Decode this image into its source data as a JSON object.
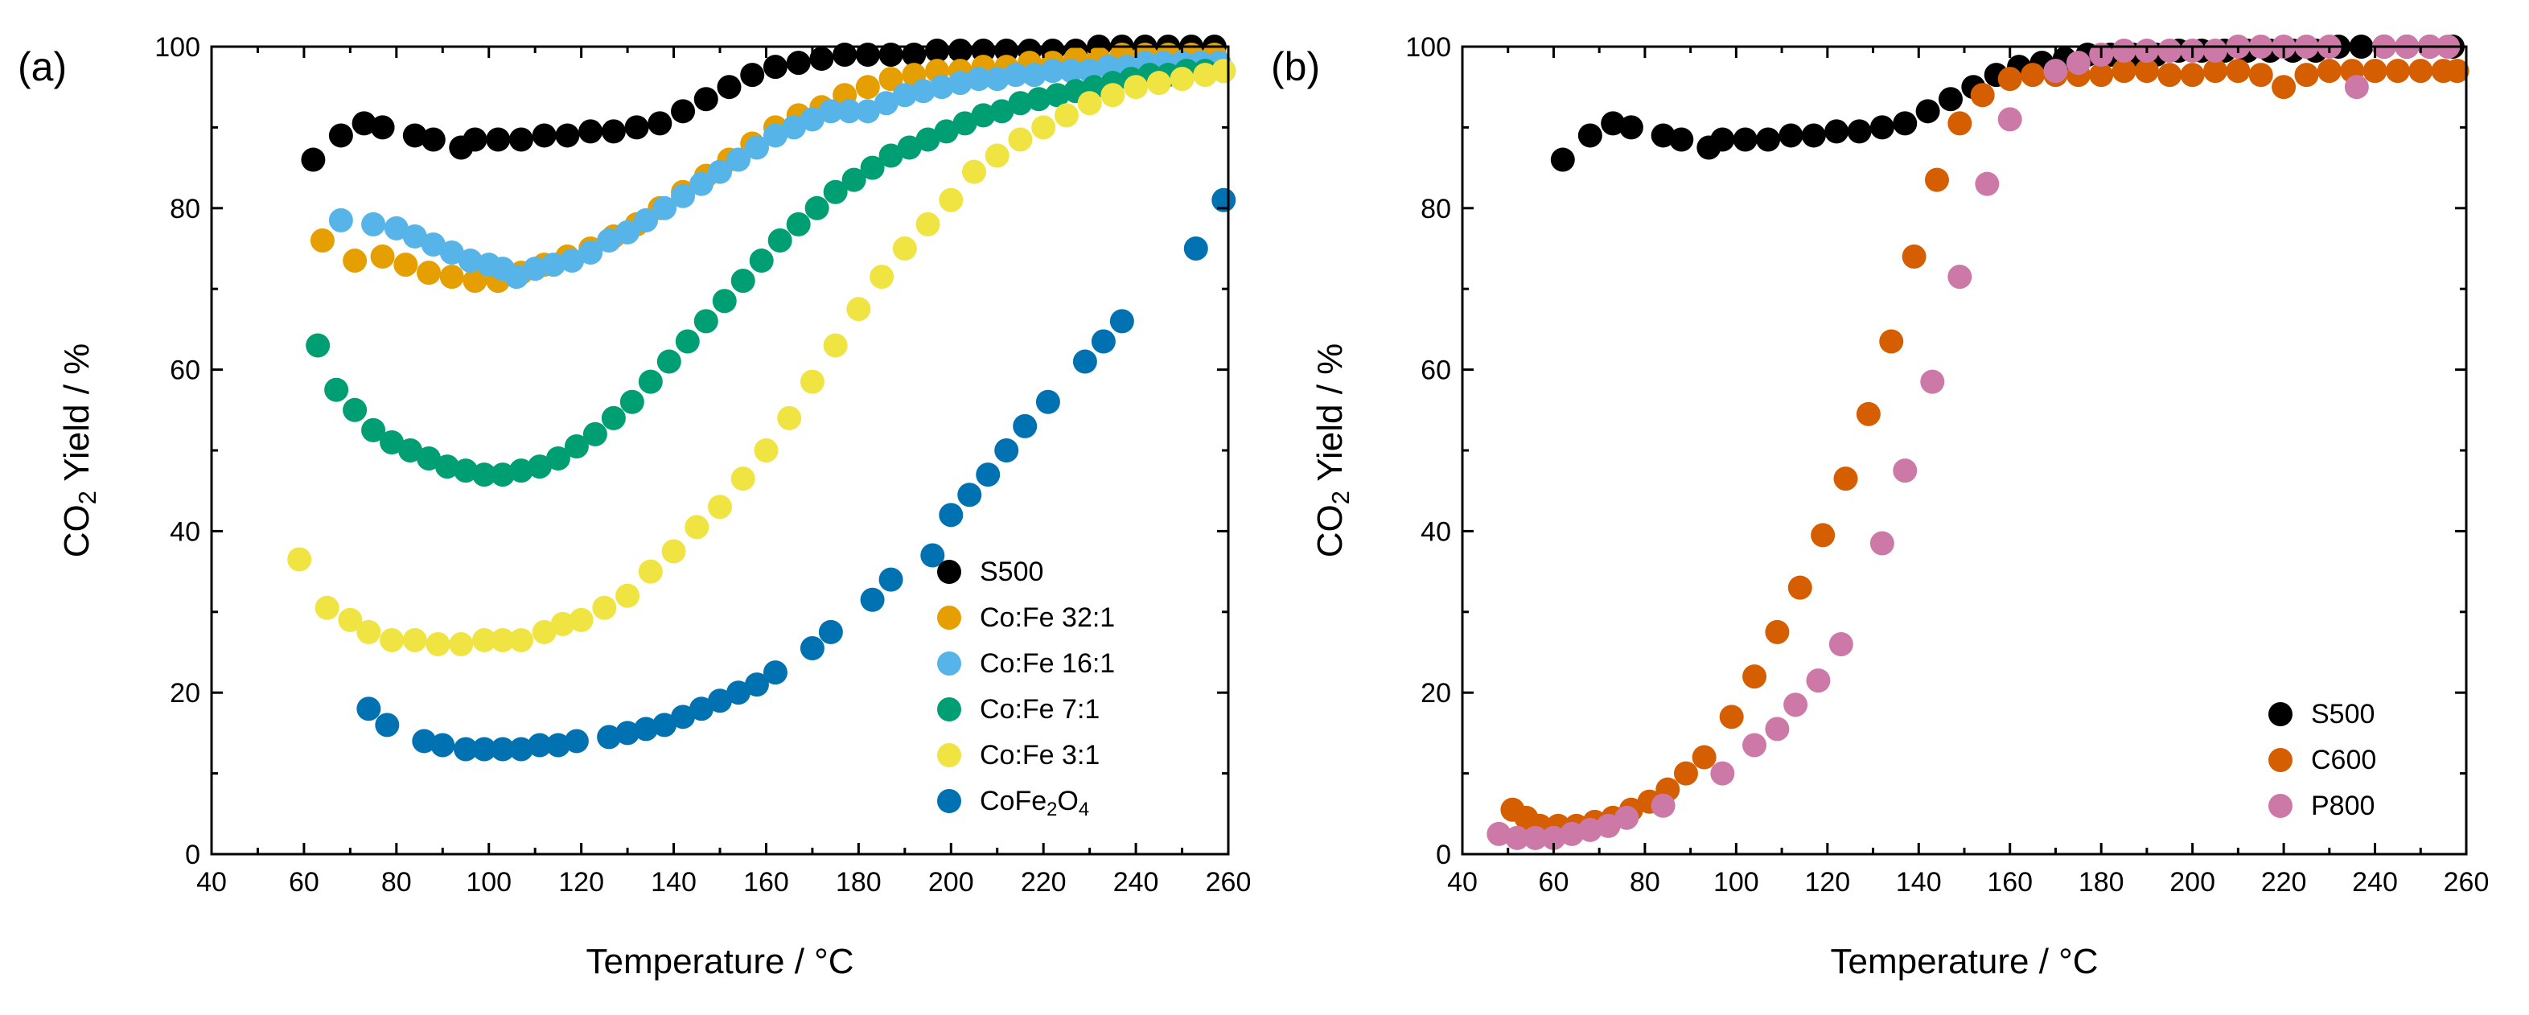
{
  "colors": {
    "S500": "#000000",
    "CoFe_32_1": "#E69F00",
    "CoFe_16_1": "#56B4E9",
    "CoFe_7_1": "#009E73",
    "CoFe_3_1": "#F0E442",
    "CoFe2O4": "#0072B2",
    "C600": "#D55E00",
    "P800": "#CC79A7"
  },
  "chart_data": [
    {
      "panel_label": "(a)",
      "type": "scatter",
      "xlabel": "Temperature / °C",
      "ylabel_parts": [
        "CO",
        "2",
        " Yield / %"
      ],
      "xlim": [
        40,
        260
      ],
      "ylim": [
        0,
        100
      ],
      "xticks": [
        40,
        60,
        80,
        100,
        120,
        140,
        160,
        180,
        200,
        220,
        240,
        260
      ],
      "yticks": [
        0,
        20,
        40,
        60,
        80,
        100
      ],
      "legend_position": "bottom-right",
      "series": [
        {
          "name": "S500",
          "label": "S500",
          "color_key": "S500",
          "x": [
            62,
            68,
            73,
            77,
            84,
            88,
            94,
            97,
            102,
            107,
            112,
            117,
            122,
            127,
            132,
            137,
            142,
            147,
            152,
            157,
            162,
            167,
            172,
            177,
            182,
            187,
            192,
            197,
            202,
            207,
            212,
            217,
            222,
            227,
            232,
            237,
            242,
            247,
            252,
            257
          ],
          "y": [
            86,
            89,
            90.5,
            90,
            89,
            88.5,
            87.5,
            88.5,
            88.5,
            88.5,
            89,
            89,
            89.5,
            89.5,
            90,
            90.5,
            92,
            93.5,
            95,
            96.5,
            97.5,
            98,
            98.5,
            99,
            99,
            99,
            99,
            99.5,
            99.5,
            99.5,
            99.5,
            99.5,
            99.5,
            99.5,
            100,
            100,
            100,
            100,
            100,
            100
          ]
        },
        {
          "name": "Co:Fe 32:1",
          "label": "Co:Fe 32:1",
          "color_key": "CoFe_32_1",
          "x": [
            64,
            71,
            77,
            82,
            87,
            92,
            97,
            102,
            107,
            112,
            117,
            122,
            127,
            132,
            137,
            142,
            147,
            152,
            157,
            162,
            167,
            172,
            177,
            182,
            187,
            192,
            197,
            202,
            207,
            212,
            217,
            222,
            227,
            232,
            237,
            242,
            247,
            252,
            257
          ],
          "y": [
            76,
            73.5,
            74,
            73,
            72,
            71.5,
            71,
            71,
            72,
            73,
            74,
            75,
            76.5,
            78,
            80,
            82,
            84,
            86,
            88,
            90,
            91.5,
            92.5,
            94,
            95,
            96,
            96.5,
            97,
            97,
            97.5,
            97.5,
            98,
            98,
            98.5,
            98.5,
            99,
            99,
            99,
            99,
            99
          ]
        },
        {
          "name": "Co:Fe 16:1",
          "label": "Co:Fe 16:1",
          "color_key": "CoFe_16_1",
          "x": [
            68,
            75,
            80,
            84,
            88,
            92,
            96,
            100,
            103,
            106,
            110,
            114,
            118,
            122,
            126,
            130,
            134,
            138,
            142,
            146,
            150,
            154,
            158,
            162,
            166,
            170,
            174,
            178,
            182,
            186,
            190,
            194,
            198,
            202,
            206,
            210,
            214,
            218,
            222,
            226,
            230,
            234,
            238,
            242,
            246,
            250,
            254,
            258
          ],
          "y": [
            78.5,
            78,
            77.5,
            76.5,
            75.5,
            74.5,
            73.5,
            73,
            72.5,
            71.5,
            72.5,
            73,
            73.5,
            74.5,
            76,
            77,
            78.5,
            80,
            81.5,
            83,
            84.5,
            86,
            87.5,
            89,
            90,
            91,
            92,
            92,
            92,
            93,
            94,
            94.5,
            95,
            95.5,
            96,
            96,
            96.5,
            96.5,
            97,
            97,
            97,
            97.5,
            97.5,
            98,
            98,
            98,
            98,
            98
          ]
        },
        {
          "name": "Co:Fe 7:1",
          "label": "Co:Fe 7:1",
          "color_key": "CoFe_7_1",
          "x": [
            63,
            67,
            71,
            75,
            79,
            83,
            87,
            91,
            95,
            99,
            103,
            107,
            111,
            115,
            119,
            123,
            127,
            131,
            135,
            139,
            143,
            147,
            151,
            155,
            159,
            163,
            167,
            171,
            175,
            179,
            183,
            187,
            191,
            195,
            199,
            203,
            207,
            211,
            215,
            219,
            223,
            227,
            231,
            235,
            239,
            243,
            247,
            251,
            255,
            259
          ],
          "y": [
            63,
            57.5,
            55,
            52.5,
            51,
            50,
            49,
            48,
            47.5,
            47,
            47,
            47.5,
            48,
            49,
            50.5,
            52,
            54,
            56,
            58.5,
            61,
            63.5,
            66,
            68.5,
            71,
            73.5,
            76,
            78,
            80,
            82,
            83.5,
            85,
            86.5,
            87.5,
            88.5,
            89.5,
            90.5,
            91.5,
            92,
            93,
            93.5,
            94,
            94.5,
            95,
            95.5,
            96,
            96.5,
            96.5,
            97,
            97,
            97
          ]
        },
        {
          "name": "Co:Fe 3:1",
          "label": "Co:Fe 3:1",
          "color_key": "CoFe_3_1",
          "x": [
            59,
            65,
            70,
            74,
            79,
            84,
            89,
            94,
            99,
            103,
            107,
            112,
            116,
            120,
            125,
            130,
            135,
            140,
            145,
            150,
            155,
            160,
            165,
            170,
            175,
            180,
            185,
            190,
            195,
            200,
            205,
            210,
            215,
            220,
            225,
            230,
            235,
            240,
            245,
            250,
            255,
            259
          ],
          "y": [
            36.5,
            30.5,
            29,
            27.5,
            26.5,
            26.5,
            26,
            26,
            26.5,
            26.5,
            26.5,
            27.5,
            28.5,
            29,
            30.5,
            32,
            35,
            37.5,
            40.5,
            43,
            46.5,
            50,
            54,
            58.5,
            63,
            67.5,
            71.5,
            75,
            78,
            81,
            84.5,
            86.5,
            88.5,
            90,
            91.5,
            93,
            94,
            95,
            95.5,
            96,
            96.5,
            97
          ]
        },
        {
          "name": "CoFe2O4",
          "label_parts": [
            "CoFe",
            "2",
            "O",
            "4"
          ],
          "color_key": "CoFe2O4",
          "x": [
            74,
            78,
            86,
            90,
            95,
            99,
            103,
            107,
            111,
            115,
            119,
            126,
            130,
            134,
            138,
            142,
            146,
            150,
            154,
            158,
            162,
            170,
            174,
            183,
            187,
            196,
            200,
            204,
            208,
            212,
            216,
            221,
            229,
            233,
            237,
            253,
            259
          ],
          "y": [
            18,
            16,
            14,
            13.5,
            13,
            13,
            13,
            13,
            13.5,
            13.5,
            14,
            14.5,
            15,
            15.5,
            16,
            17,
            18,
            19,
            20,
            21,
            22.5,
            25.5,
            27.5,
            31.5,
            34,
            37,
            42,
            44.5,
            47,
            50,
            53,
            56,
            61,
            63.5,
            66,
            75,
            81
          ]
        }
      ]
    },
    {
      "panel_label": "(b)",
      "type": "scatter",
      "xlabel": "Temperature / °C",
      "ylabel_parts": [
        "CO",
        "2",
        " Yield / %"
      ],
      "xlim": [
        40,
        260
      ],
      "ylim": [
        0,
        100
      ],
      "xticks": [
        40,
        60,
        80,
        100,
        120,
        140,
        160,
        180,
        200,
        220,
        240,
        260
      ],
      "yticks": [
        0,
        20,
        40,
        60,
        80,
        100
      ],
      "legend_position": "bottom-right",
      "series": [
        {
          "name": "S500",
          "label": "S500",
          "color_key": "S500",
          "x": [
            62,
            68,
            73,
            77,
            84,
            88,
            94,
            97,
            102,
            107,
            112,
            117,
            122,
            127,
            132,
            137,
            142,
            147,
            152,
            157,
            162,
            167,
            172,
            177,
            182,
            187,
            192,
            197,
            202,
            207,
            212,
            217,
            222,
            227,
            232,
            237,
            242,
            247,
            252,
            257
          ],
          "y": [
            86,
            89,
            90.5,
            90,
            89,
            88.5,
            87.5,
            88.5,
            88.5,
            88.5,
            89,
            89,
            89.5,
            89.5,
            90,
            90.5,
            92,
            93.5,
            95,
            96.5,
            97.5,
            98,
            98.5,
            99,
            99,
            99,
            99,
            99.5,
            99.5,
            99.5,
            99.5,
            99.5,
            99.5,
            99.5,
            100,
            100,
            100,
            100,
            100,
            100
          ]
        },
        {
          "name": "C600",
          "label": "C600",
          "color_key": "C600",
          "x": [
            51,
            54,
            57,
            61,
            65,
            69,
            73,
            77,
            81,
            85,
            89,
            93,
            99,
            104,
            109,
            114,
            119,
            124,
            129,
            134,
            139,
            144,
            149,
            154,
            160,
            165,
            170,
            175,
            180,
            185,
            190,
            195,
            200,
            205,
            210,
            215,
            220,
            225,
            230,
            235,
            240,
            245,
            250,
            255,
            258
          ],
          "y": [
            5.5,
            4.5,
            3.5,
            3.5,
            3.5,
            4,
            4.5,
            5.5,
            6.5,
            8,
            10,
            12,
            17,
            22,
            27.5,
            33,
            39.5,
            46.5,
            54.5,
            63.5,
            74,
            83.5,
            90.5,
            94,
            96,
            96.5,
            96.5,
            96.5,
            96.5,
            97,
            97,
            96.5,
            96.5,
            97,
            97,
            96.5,
            95,
            96.5,
            97,
            97,
            97,
            97,
            97,
            97,
            97
          ]
        },
        {
          "name": "P800",
          "label": "P800",
          "color_key": "P800",
          "x": [
            48,
            52,
            56,
            60,
            64,
            68,
            72,
            76,
            84,
            97,
            104,
            109,
            113,
            118,
            123,
            132,
            137,
            143,
            149,
            155,
            160,
            170,
            175,
            180,
            185,
            190,
            195,
            200,
            205,
            210,
            215,
            220,
            225,
            230,
            236,
            242,
            247,
            252,
            256
          ],
          "y": [
            2.5,
            2,
            2,
            2,
            2.5,
            3,
            3.5,
            4.5,
            6,
            10,
            13.5,
            15.5,
            18.5,
            21.5,
            26,
            38.5,
            47.5,
            58.5,
            71.5,
            83,
            91,
            97,
            98,
            99,
            99.5,
            99.5,
            99.5,
            99.5,
            99.5,
            100,
            100,
            100,
            100,
            100,
            95,
            100,
            100,
            100,
            100
          ]
        }
      ]
    }
  ]
}
